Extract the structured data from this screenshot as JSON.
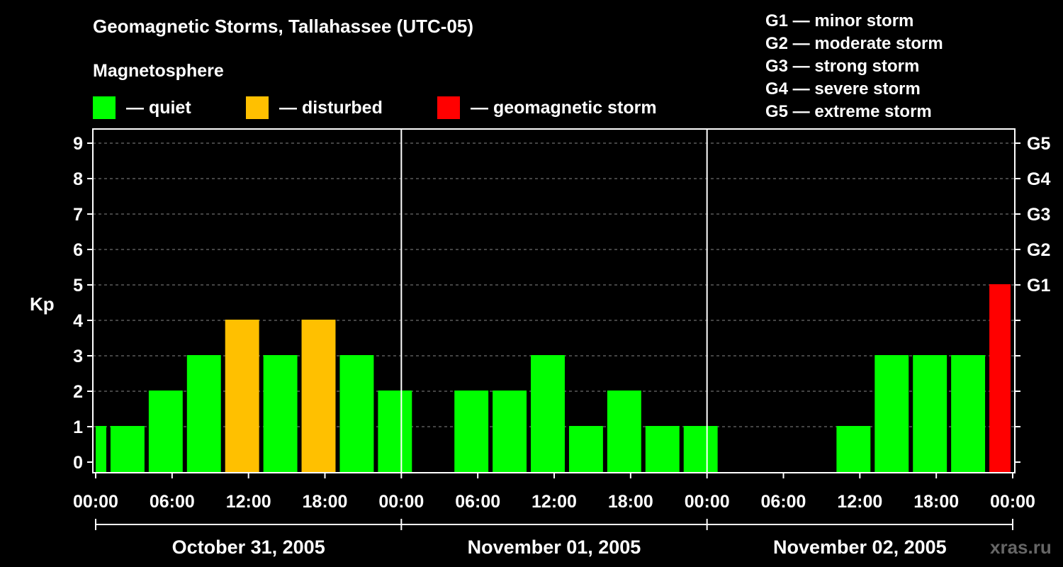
{
  "title": "Geomagnetic Storms, Tallahassee (UTC-05)",
  "legend_title": "Magnetosphere",
  "legend": [
    {
      "label": "— quiet",
      "color": "#00ff00"
    },
    {
      "label": "— disturbed",
      "color": "#ffc000"
    },
    {
      "label": "— geomagnetic storm",
      "color": "#ff0000"
    }
  ],
  "g_scale": [
    "G1 — minor storm",
    "G2 — moderate storm",
    "G3 — strong storm",
    "G4 — severe storm",
    "G5 — extreme storm"
  ],
  "source": "xras.ru",
  "chart_data": {
    "type": "bar",
    "ylabel": "Kp",
    "ylim": [
      0,
      9
    ],
    "yticks": [
      "0",
      "1",
      "2",
      "3",
      "4",
      "5",
      "6",
      "7",
      "8",
      "9"
    ],
    "right_ticks": [
      {
        "kp": 5,
        "label": "G1"
      },
      {
        "kp": 6,
        "label": "G2"
      },
      {
        "kp": 7,
        "label": "G3"
      },
      {
        "kp": 8,
        "label": "G4"
      },
      {
        "kp": 9,
        "label": "G5"
      }
    ],
    "grid": true,
    "xtick_labels": [
      "00:00",
      "06:00",
      "12:00",
      "18:00",
      "00:00",
      "06:00",
      "12:00",
      "18:00",
      "00:00",
      "06:00",
      "12:00",
      "18:00",
      "00:00"
    ],
    "dates": [
      "October 31, 2005",
      "November 01, 2005",
      "November 02, 2005"
    ],
    "colors": {
      "quiet": "#00ff00",
      "disturbed": "#ffc000",
      "storm": "#ff0000"
    },
    "bars": [
      {
        "start": "2005-10-31 00:00",
        "end": "2005-10-31 01:00",
        "kp": 1,
        "level": "quiet"
      },
      {
        "start": "2005-10-31 01:00",
        "end": "2005-10-31 04:00",
        "kp": 1,
        "level": "quiet"
      },
      {
        "start": "2005-10-31 04:00",
        "end": "2005-10-31 07:00",
        "kp": 2,
        "level": "quiet"
      },
      {
        "start": "2005-10-31 07:00",
        "end": "2005-10-31 10:00",
        "kp": 3,
        "level": "quiet"
      },
      {
        "start": "2005-10-31 10:00",
        "end": "2005-10-31 13:00",
        "kp": 4,
        "level": "disturbed"
      },
      {
        "start": "2005-10-31 13:00",
        "end": "2005-10-31 16:00",
        "kp": 3,
        "level": "quiet"
      },
      {
        "start": "2005-10-31 16:00",
        "end": "2005-10-31 19:00",
        "kp": 4,
        "level": "disturbed"
      },
      {
        "start": "2005-10-31 19:00",
        "end": "2005-10-31 22:00",
        "kp": 3,
        "level": "quiet"
      },
      {
        "start": "2005-10-31 22:00",
        "end": "2005-11-01 01:00",
        "kp": 2,
        "level": "quiet"
      },
      {
        "start": "2005-11-01 01:00",
        "end": "2005-11-01 04:00",
        "kp": 0,
        "level": "quiet"
      },
      {
        "start": "2005-11-01 04:00",
        "end": "2005-11-01 07:00",
        "kp": 2,
        "level": "quiet"
      },
      {
        "start": "2005-11-01 07:00",
        "end": "2005-11-01 10:00",
        "kp": 2,
        "level": "quiet"
      },
      {
        "start": "2005-11-01 10:00",
        "end": "2005-11-01 13:00",
        "kp": 3,
        "level": "quiet"
      },
      {
        "start": "2005-11-01 13:00",
        "end": "2005-11-01 16:00",
        "kp": 1,
        "level": "quiet"
      },
      {
        "start": "2005-11-01 16:00",
        "end": "2005-11-01 19:00",
        "kp": 2,
        "level": "quiet"
      },
      {
        "start": "2005-11-01 19:00",
        "end": "2005-11-01 22:00",
        "kp": 1,
        "level": "quiet"
      },
      {
        "start": "2005-11-01 22:00",
        "end": "2005-11-02 01:00",
        "kp": 1,
        "level": "quiet"
      },
      {
        "start": "2005-11-02 01:00",
        "end": "2005-11-02 04:00",
        "kp": 0,
        "level": "quiet"
      },
      {
        "start": "2005-11-02 04:00",
        "end": "2005-11-02 07:00",
        "kp": 0,
        "level": "quiet"
      },
      {
        "start": "2005-11-02 07:00",
        "end": "2005-11-02 10:00",
        "kp": 0,
        "level": "quiet"
      },
      {
        "start": "2005-11-02 10:00",
        "end": "2005-11-02 13:00",
        "kp": 1,
        "level": "quiet"
      },
      {
        "start": "2005-11-02 13:00",
        "end": "2005-11-02 16:00",
        "kp": 3,
        "level": "quiet"
      },
      {
        "start": "2005-11-02 16:00",
        "end": "2005-11-02 19:00",
        "kp": 3,
        "level": "quiet"
      },
      {
        "start": "2005-11-02 19:00",
        "end": "2005-11-02 22:00",
        "kp": 3,
        "level": "quiet"
      },
      {
        "start": "2005-11-02 22:00",
        "end": "2005-11-03 00:00",
        "kp": 5,
        "level": "storm"
      }
    ]
  }
}
